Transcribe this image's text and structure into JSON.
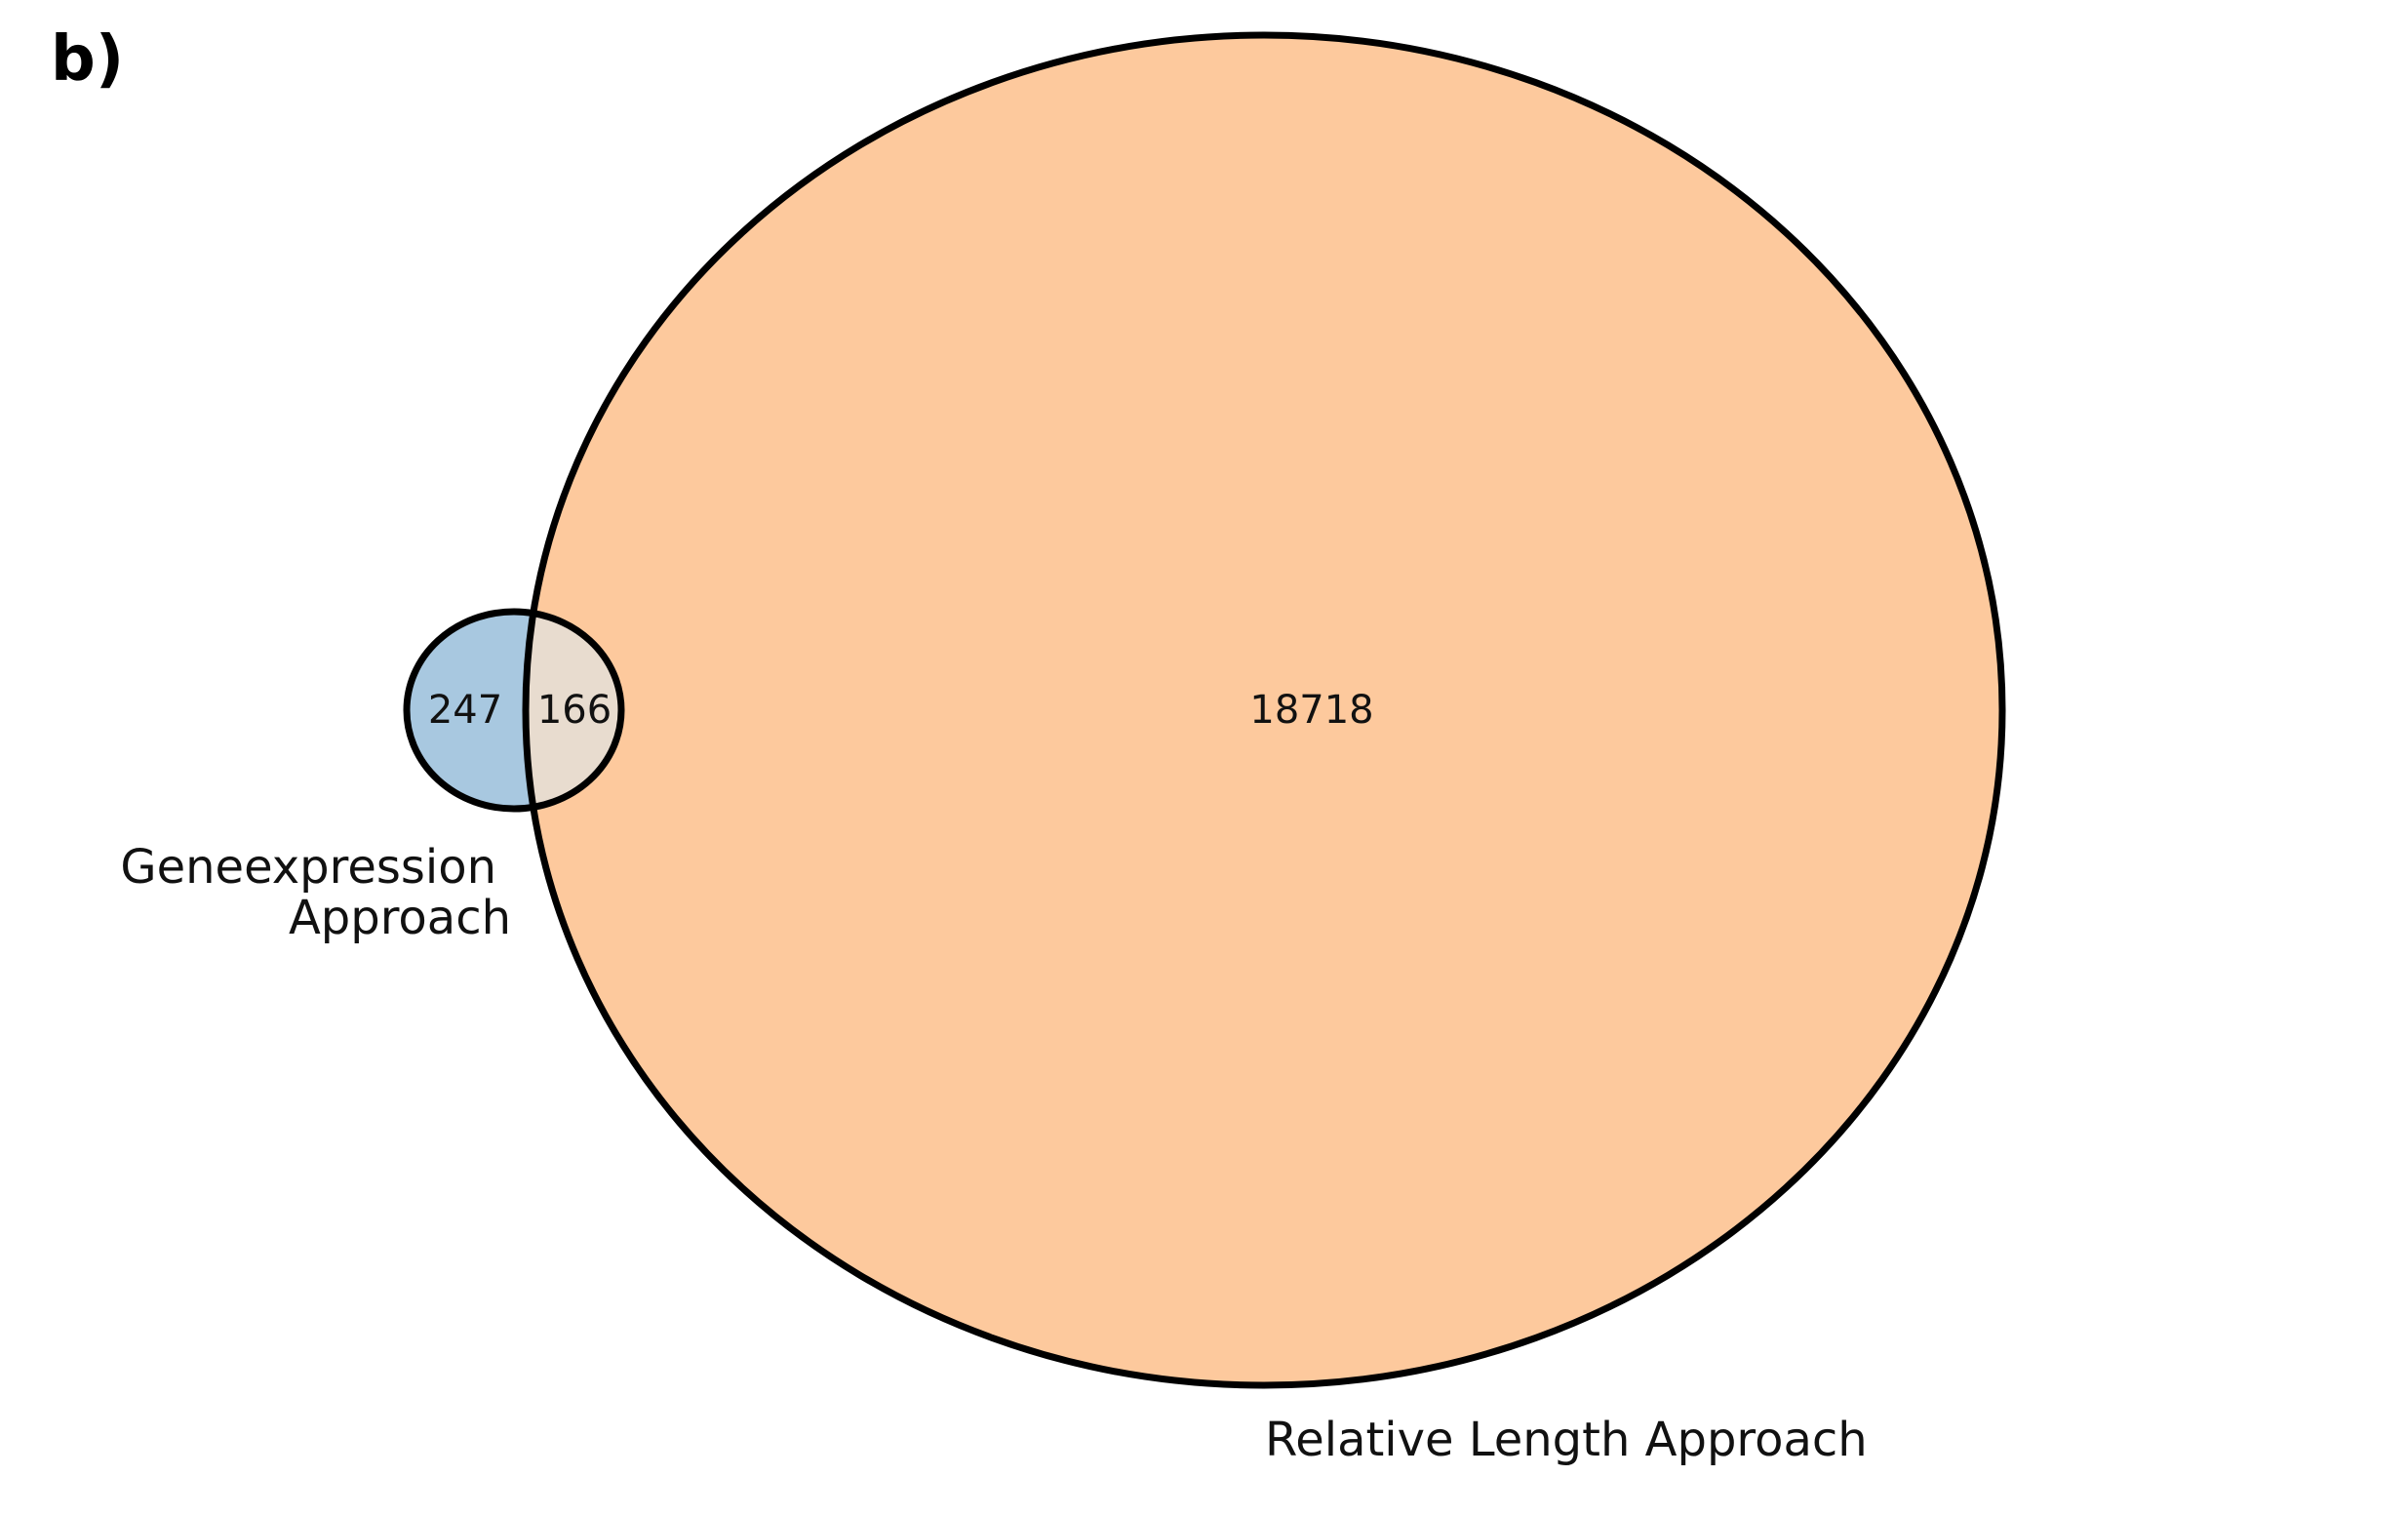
{
  "panel_label": "b)",
  "sets": [
    {
      "name": "Geneexpression Approach",
      "label_lines": [
        "Geneexpression",
        "Approach"
      ],
      "only_count": "247",
      "color": "#a8c8e0"
    },
    {
      "name": "Relative Length Approach",
      "label_lines": [
        "Relative Length Approach"
      ],
      "only_count": "18718",
      "color": "#fdc99d"
    }
  ],
  "intersection": {
    "count": "166",
    "color": "#e8dccf"
  },
  "outline_color": "#000000"
}
